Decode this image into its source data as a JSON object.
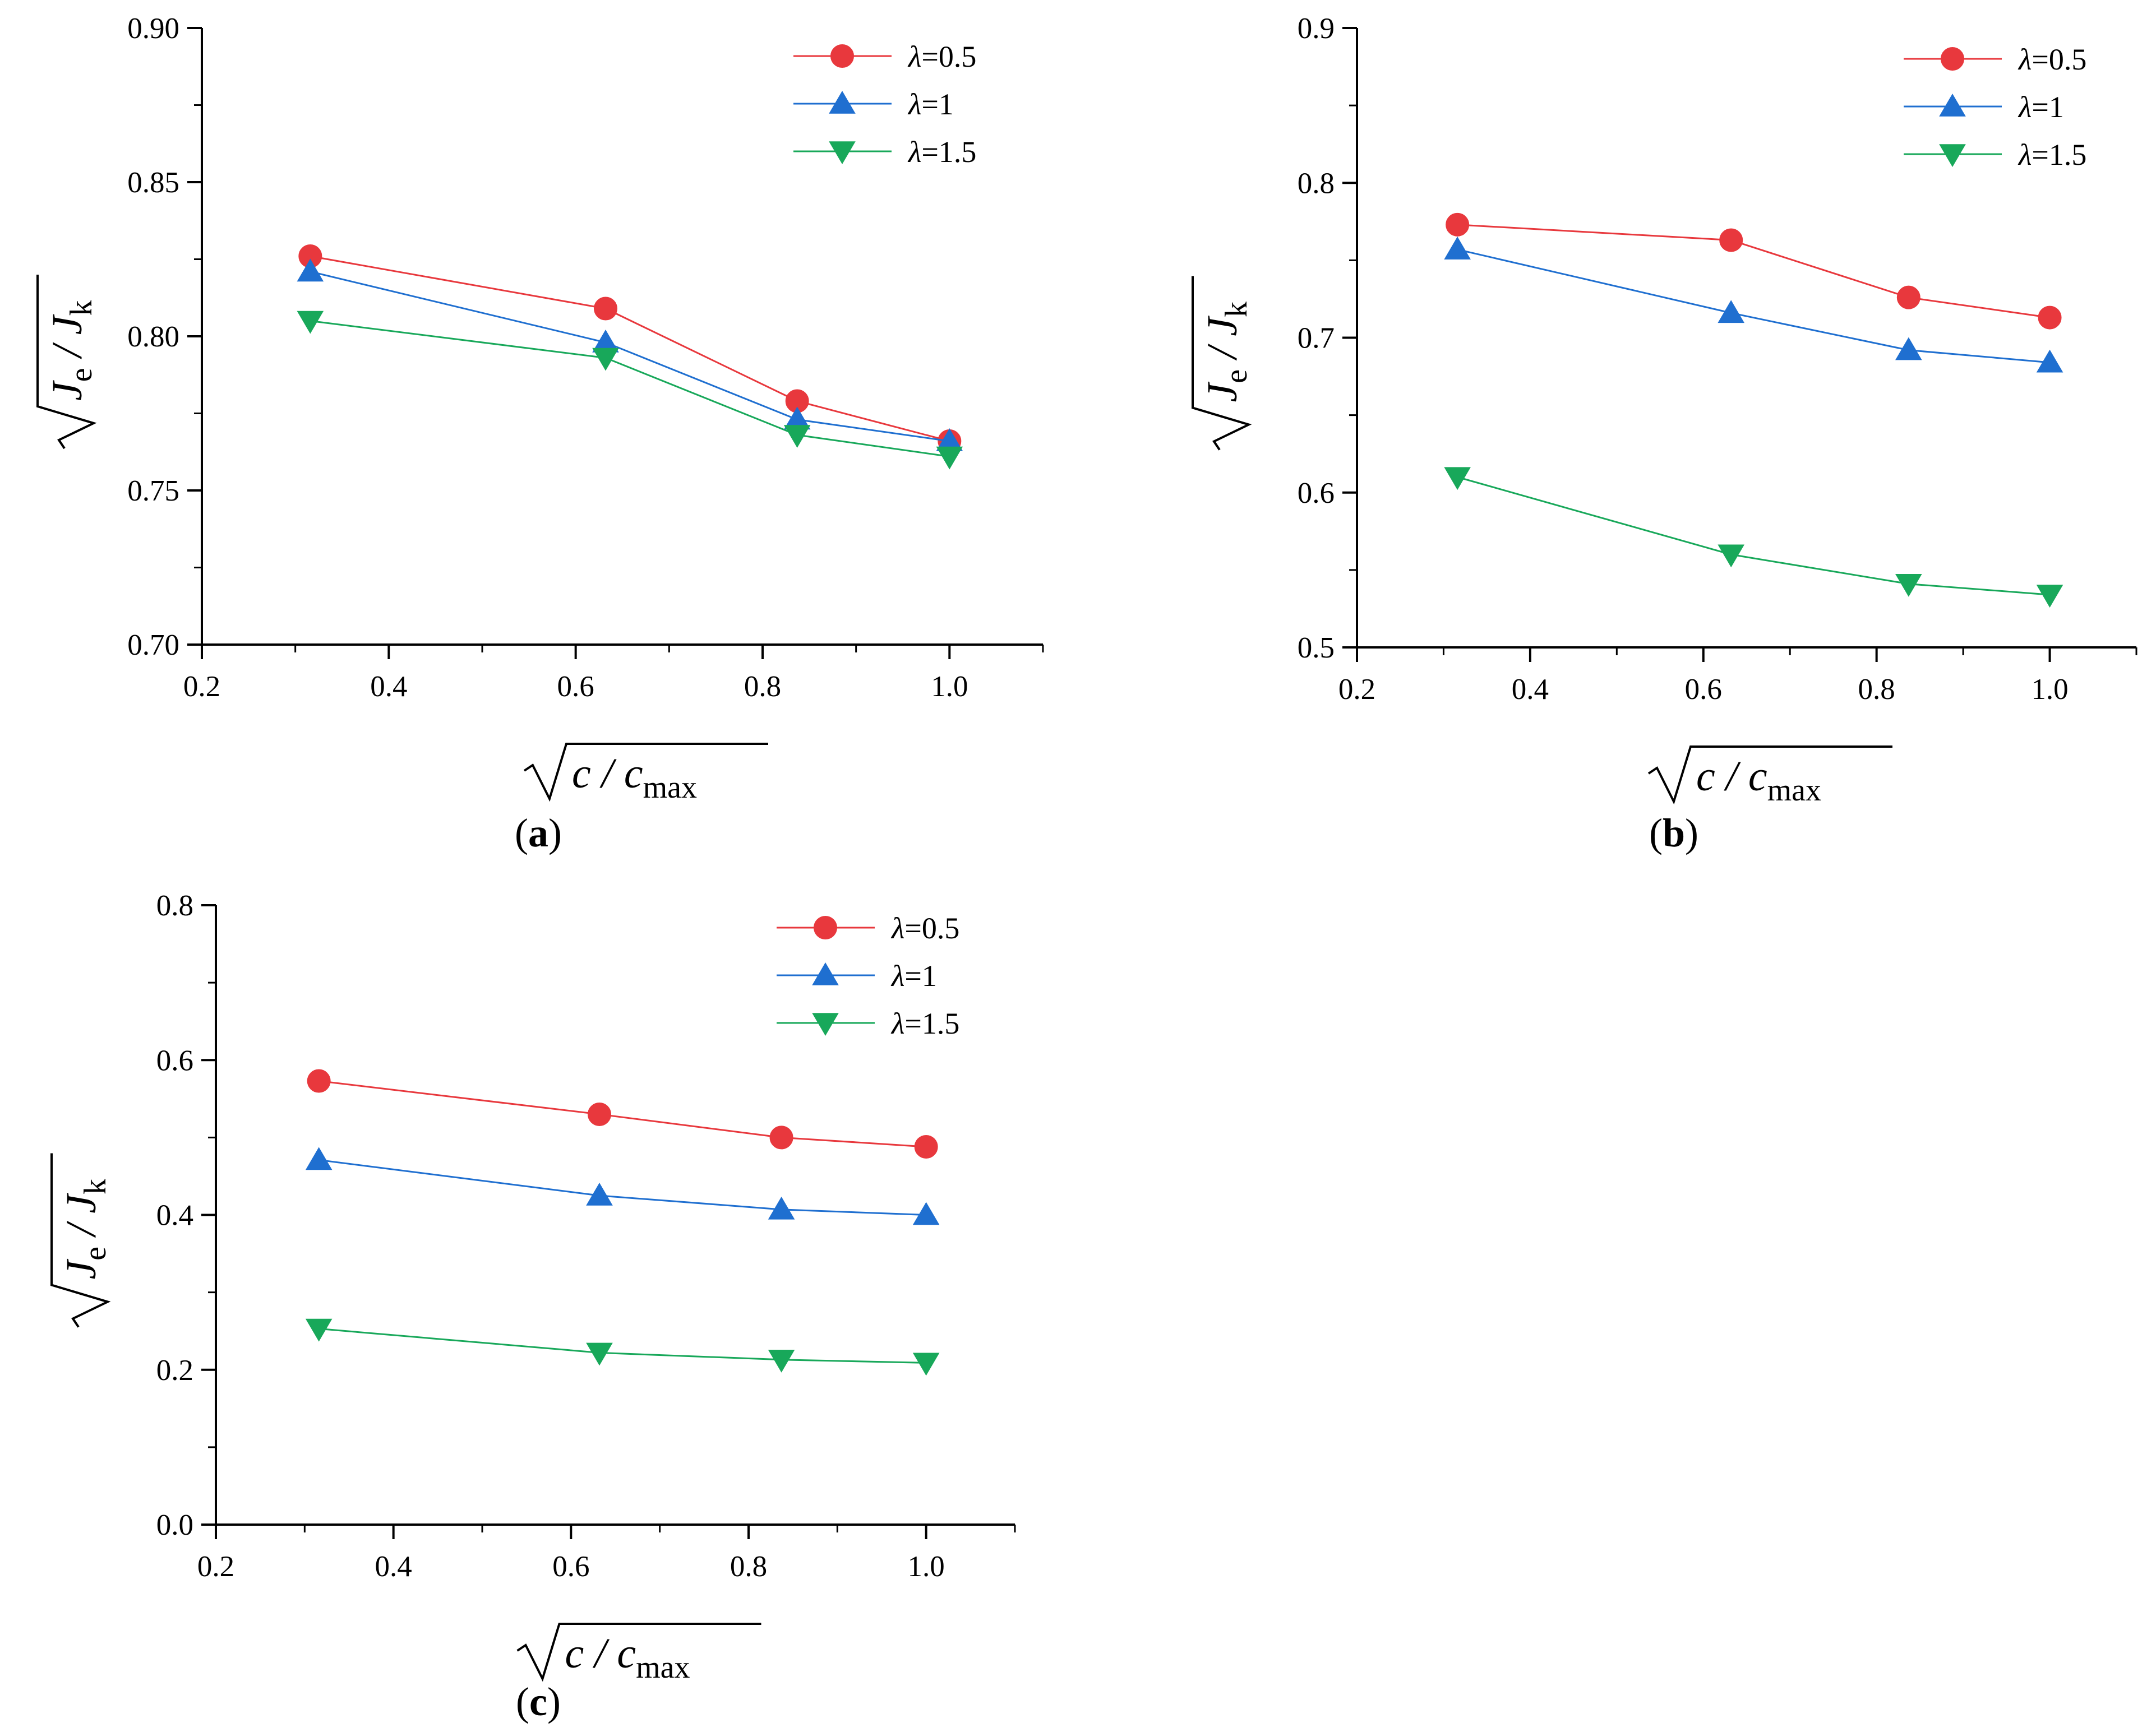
{
  "chart_data": [
    {
      "type": "line",
      "panel_label": "a",
      "title": "",
      "xlabel": {
        "base": "c / c",
        "sub": "max"
      },
      "ylabel": {
        "base1": "J",
        "sub1": "e",
        "mid": " / J",
        "sub2": "k"
      },
      "xlim": [
        0.2,
        1.1
      ],
      "ylim": [
        0.7,
        0.9
      ],
      "xticks": [
        "0.2",
        "0.4",
        "0.6",
        "0.8",
        "1.0"
      ],
      "yticks": [
        "0.70",
        "0.75",
        "0.80",
        "0.85",
        "0.90"
      ],
      "x": [
        0.316,
        0.632,
        0.837,
        1.0
      ],
      "series": [
        {
          "name": "λ=0.5",
          "marker": "circle",
          "color": "#e8383d",
          "values": [
            0.826,
            0.809,
            0.779,
            0.766
          ]
        },
        {
          "name": "λ=1",
          "marker": "triangle-up",
          "color": "#1f6fd0",
          "values": [
            0.821,
            0.798,
            0.773,
            0.766
          ]
        },
        {
          "name": "λ=1.5",
          "marker": "triangle-down",
          "color": "#18a85a",
          "values": [
            0.805,
            0.793,
            0.768,
            0.761
          ]
        }
      ],
      "legend_position": "top-right"
    },
    {
      "type": "line",
      "panel_label": "b",
      "title": "",
      "xlabel": {
        "base": "c / c",
        "sub": "max"
      },
      "ylabel": {
        "base1": "J",
        "sub1": "e",
        "mid": " / J",
        "sub2": "k"
      },
      "xlim": [
        0.2,
        1.1
      ],
      "ylim": [
        0.5,
        0.9
      ],
      "xticks": [
        "0.2",
        "0.4",
        "0.6",
        "0.8",
        "1.0"
      ],
      "yticks": [
        "0.5",
        "0.6",
        "0.7",
        "0.8",
        "0.9"
      ],
      "x": [
        0.316,
        0.632,
        0.837,
        1.0
      ],
      "series": [
        {
          "name": "λ=0.5",
          "marker": "circle",
          "color": "#e8383d",
          "values": [
            0.773,
            0.763,
            0.726,
            0.713
          ]
        },
        {
          "name": "λ=1",
          "marker": "triangle-up",
          "color": "#1f6fd0",
          "values": [
            0.757,
            0.716,
            0.692,
            0.684
          ]
        },
        {
          "name": "λ=1.5",
          "marker": "triangle-down",
          "color": "#18a85a",
          "values": [
            0.61,
            0.56,
            0.541,
            0.534
          ]
        }
      ],
      "legend_position": "top-right"
    },
    {
      "type": "line",
      "panel_label": "c",
      "title": "",
      "xlabel": {
        "base": "c / c",
        "sub": "max"
      },
      "ylabel": {
        "base1": "J",
        "sub1": "e",
        "mid": " / J",
        "sub2": "k"
      },
      "xlim": [
        0.2,
        1.1
      ],
      "ylim": [
        0.0,
        0.8
      ],
      "xticks": [
        "0.2",
        "0.4",
        "0.6",
        "0.8",
        "1.0"
      ],
      "yticks": [
        "0.0",
        "0.2",
        "0.4",
        "0.6",
        "0.8"
      ],
      "x": [
        0.316,
        0.632,
        0.837,
        1.0
      ],
      "series": [
        {
          "name": "λ=0.5",
          "marker": "circle",
          "color": "#e8383d",
          "values": [
            0.573,
            0.53,
            0.5,
            0.488
          ]
        },
        {
          "name": "λ=1",
          "marker": "triangle-up",
          "color": "#1f6fd0",
          "values": [
            0.471,
            0.425,
            0.407,
            0.4
          ]
        },
        {
          "name": "λ=1.5",
          "marker": "triangle-down",
          "color": "#18a85a",
          "values": [
            0.253,
            0.222,
            0.213,
            0.209
          ]
        }
      ],
      "legend_position": "top-right"
    }
  ]
}
